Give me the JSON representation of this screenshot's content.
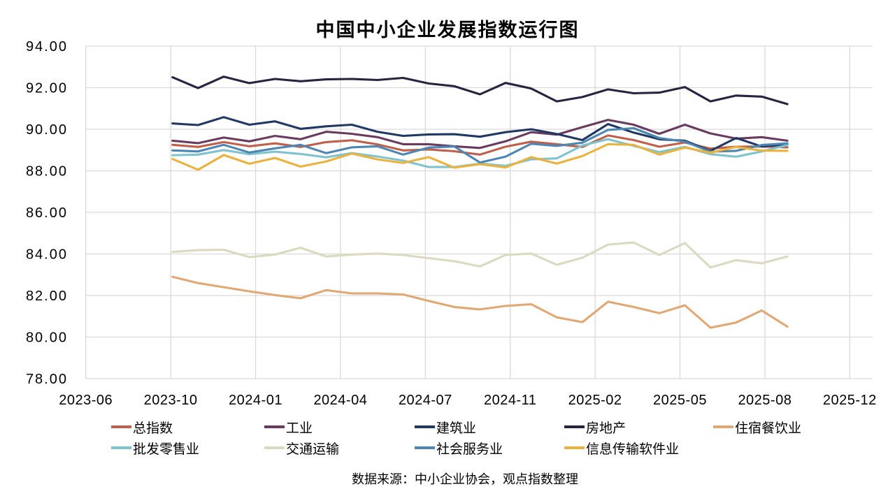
{
  "chart_data": {
    "type": "line",
    "title": "中国中小企业发展指数运行图",
    "source_note": "数据来源：中小企业协会，观点指数整理",
    "grid": true,
    "legend_position": "bottom",
    "ylim": [
      78,
      94
    ],
    "y_tick_labels": [
      "94.00",
      "92.00",
      "90.00",
      "88.00",
      "86.00",
      "84.00",
      "82.00",
      "80.00",
      "78.00"
    ],
    "x_tick_labels": [
      "2023-06",
      "2023-10",
      "2024-01",
      "2024-04",
      "2024-07",
      "2024-11",
      "2025-02",
      "2025-05",
      "2025-08",
      "2025-12"
    ],
    "x_data_note": "25 consecutive points, first point at the 2023-10 gridline, three points per labeled interval",
    "series": [
      {
        "name": "总指数",
        "color": "#C0604B",
        "values": [
          89.25,
          89.15,
          89.38,
          89.18,
          89.32,
          89.15,
          89.38,
          89.47,
          89.27,
          88.98,
          89.03,
          88.94,
          88.78,
          89.16,
          89.4,
          89.28,
          89.15,
          89.7,
          89.48,
          89.16,
          89.36,
          89.07,
          89.16,
          89.17,
          89.13
        ]
      },
      {
        "name": "工业",
        "color": "#6B3A5F",
        "values": [
          89.45,
          89.33,
          89.6,
          89.42,
          89.68,
          89.52,
          89.88,
          89.78,
          89.62,
          89.28,
          89.28,
          89.18,
          89.1,
          89.42,
          89.86,
          89.74,
          90.1,
          90.45,
          90.22,
          89.78,
          90.22,
          89.8,
          89.55,
          89.62,
          89.45
        ]
      },
      {
        "name": "建筑业",
        "color": "#1F3864",
        "values": [
          90.28,
          90.2,
          90.58,
          90.22,
          90.38,
          90.02,
          90.14,
          90.22,
          89.88,
          89.68,
          89.75,
          89.76,
          89.64,
          89.86,
          90.0,
          89.77,
          89.48,
          90.25,
          89.84,
          89.52,
          89.45,
          88.96,
          89.58,
          89.17,
          89.28
        ]
      },
      {
        "name": "房地产",
        "color": "#262440",
        "values": [
          92.5,
          91.98,
          92.53,
          92.22,
          92.42,
          92.31,
          92.4,
          92.42,
          92.37,
          92.47,
          92.2,
          92.07,
          91.68,
          92.23,
          91.96,
          91.34,
          91.55,
          91.92,
          91.73,
          91.76,
          92.03,
          91.34,
          91.62,
          91.57,
          91.21
        ]
      },
      {
        "name": "住宿餐饮业",
        "color": "#E2A873",
        "values": [
          82.9,
          82.6,
          82.4,
          82.2,
          82.02,
          81.87,
          82.26,
          82.1,
          82.1,
          82.05,
          81.74,
          81.45,
          81.33,
          81.5,
          81.58,
          80.95,
          80.72,
          81.7,
          81.45,
          81.15,
          81.53,
          80.45,
          80.7,
          81.28,
          80.5
        ]
      },
      {
        "name": "批发零售业",
        "color": "#7FC3CE",
        "values": [
          88.75,
          88.78,
          89.0,
          88.8,
          88.92,
          88.81,
          88.65,
          88.85,
          88.69,
          88.49,
          88.18,
          88.18,
          88.35,
          88.24,
          88.55,
          88.6,
          89.22,
          89.52,
          89.2,
          88.9,
          89.15,
          88.8,
          88.68,
          88.93,
          89.24
        ]
      },
      {
        "name": "交通运输",
        "color": "#DBD9BF",
        "values": [
          84.1,
          84.18,
          84.2,
          83.85,
          83.97,
          84.3,
          83.88,
          83.97,
          84.02,
          83.95,
          83.8,
          83.65,
          83.4,
          83.95,
          84.02,
          83.48,
          83.82,
          84.45,
          84.55,
          83.95,
          84.52,
          83.35,
          83.7,
          83.55,
          83.88
        ]
      },
      {
        "name": "社会服务业",
        "color": "#4C86B4",
        "values": [
          88.98,
          88.93,
          89.25,
          88.88,
          89.08,
          89.25,
          88.85,
          89.13,
          89.18,
          88.78,
          89.12,
          89.17,
          88.4,
          88.68,
          89.3,
          89.2,
          89.35,
          89.97,
          90.05,
          89.58,
          89.4,
          88.92,
          88.96,
          89.24,
          89.32
        ]
      },
      {
        "name": "信息传输软件业",
        "color": "#EBB23D",
        "values": [
          88.57,
          88.05,
          88.76,
          88.34,
          88.62,
          88.2,
          88.45,
          88.83,
          88.55,
          88.38,
          88.66,
          88.15,
          88.32,
          88.16,
          88.66,
          88.35,
          88.71,
          89.28,
          89.25,
          88.78,
          89.12,
          88.87,
          89.15,
          88.97,
          88.96
        ]
      }
    ],
    "gridline_color": "#D9D9D9"
  }
}
